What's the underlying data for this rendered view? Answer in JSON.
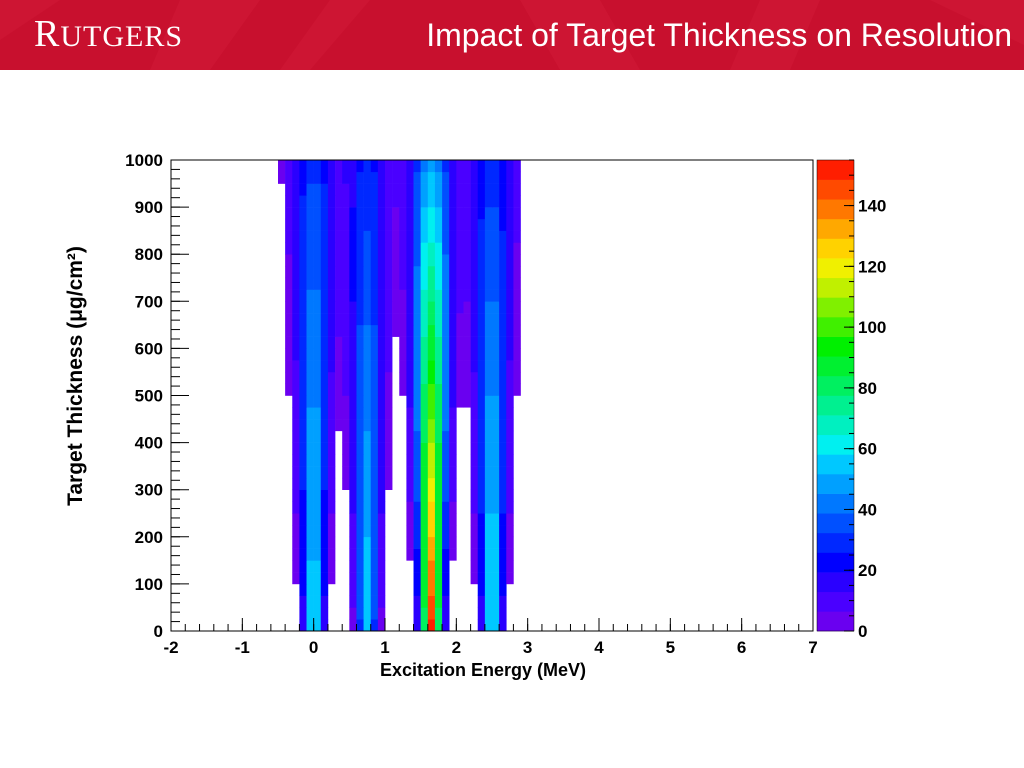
{
  "header": {
    "logo_text": "Rutgers",
    "title": "Impact of Target Thickness on Resolution"
  },
  "colors": {
    "banner": "#c8102e",
    "text": "#000000"
  },
  "chart_data": {
    "type": "heatmap",
    "title": "",
    "xlabel": "Excitation Energy (MeV)",
    "ylabel": "Target Thickness (μg/cm²)",
    "xlim": [
      -2,
      7
    ],
    "ylim": [
      0,
      1000
    ],
    "xticks": [
      "-2",
      "-1",
      "0",
      "1",
      "2",
      "3",
      "4",
      "5",
      "6",
      "7"
    ],
    "yticks": [
      "0",
      "100",
      "200",
      "300",
      "400",
      "500",
      "600",
      "700",
      "800",
      "900",
      "1000"
    ],
    "colorbar": {
      "range": [
        0,
        155
      ],
      "ticks": [
        "0",
        "20",
        "40",
        "60",
        "80",
        "100",
        "120",
        "140"
      ],
      "palette": [
        "#6a00f0",
        "#4a00ff",
        "#2a00ff",
        "#0000ff",
        "#0028ff",
        "#0050ff",
        "#0078ff",
        "#00a0ff",
        "#00c8ff",
        "#00f0f0",
        "#00f0c0",
        "#00f090",
        "#00f060",
        "#00f030",
        "#00f000",
        "#40f000",
        "#80f000",
        "#c0f000",
        "#f0f000",
        "#ffd200",
        "#ffa800",
        "#ff7800",
        "#ff4a00",
        "#ff1e00"
      ]
    },
    "bands": [
      {
        "center": 0.0,
        "peak_bottom": 62,
        "peak_top": 32
      },
      {
        "center": 0.75,
        "peak_bottom": 58,
        "peak_top": 28
      },
      {
        "center": 1.65,
        "peak_bottom": 150,
        "peak_top": 48
      },
      {
        "center": 2.5,
        "peak_bottom": 65,
        "peak_top": 30
      }
    ]
  }
}
